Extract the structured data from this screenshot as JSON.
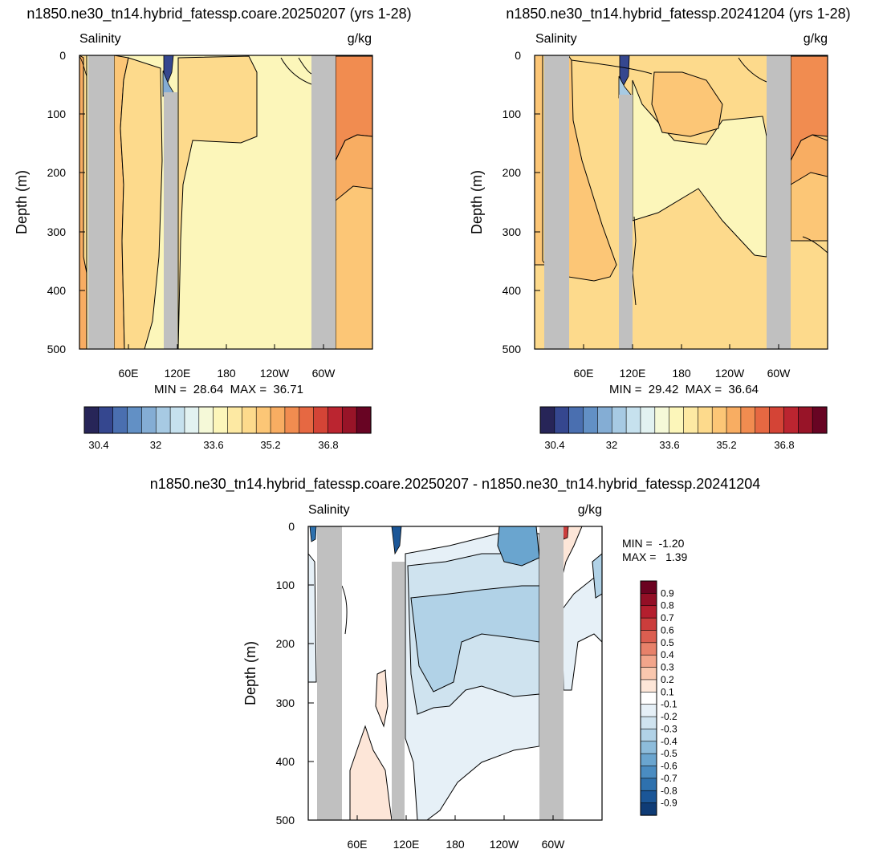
{
  "chart_data": [
    {
      "type": "contour",
      "title": "n1850.ne30_tn14.hybrid_fatessp.coare.20250207 (yrs 1-28)",
      "left_label": "Salinity",
      "right_label": "g/kg",
      "ylabel": "Depth (m)",
      "ylim": [
        0,
        500
      ],
      "y_ticks": [
        "0",
        "100",
        "200",
        "300",
        "400",
        "500"
      ],
      "x_ticks": [
        "60E",
        "120E",
        "180",
        "120W",
        "60W"
      ],
      "minmax_text": "MIN =  28.64  MAX =  36.71",
      "colorbar_labels": [
        "30.4",
        "32",
        "33.6",
        "35.2",
        "36.8"
      ]
    },
    {
      "type": "contour",
      "title": "n1850.ne30_tn14.hybrid_fatessp.20241204 (yrs 1-28)",
      "left_label": "Salinity",
      "right_label": "g/kg",
      "ylabel": "Depth (m)",
      "ylim": [
        0,
        500
      ],
      "y_ticks": [
        "0",
        "100",
        "200",
        "300",
        "400",
        "500"
      ],
      "x_ticks": [
        "60E",
        "120E",
        "180",
        "120W",
        "60W"
      ],
      "minmax_text": "MIN =  29.42  MAX =  36.64",
      "colorbar_labels": [
        "30.4",
        "32",
        "33.6",
        "35.2",
        "36.8"
      ]
    },
    {
      "type": "contour",
      "title": "n1850.ne30_tn14.hybrid_fatessp.coare.20250207 - n1850.ne30_tn14.hybrid_fatessp.20241204",
      "left_label": "Salinity",
      "right_label": "g/kg",
      "ylabel": "Depth (m)",
      "ylim": [
        0,
        500
      ],
      "y_ticks": [
        "0",
        "100",
        "200",
        "300",
        "400",
        "500"
      ],
      "x_ticks": [
        "60E",
        "120E",
        "180",
        "120W",
        "60W"
      ],
      "min_text": "MIN =  -1.20",
      "max_text": "MAX =   1.39",
      "colorbar_labels": [
        "0.9",
        "0.8",
        "0.7",
        "0.6",
        "0.5",
        "0.4",
        "0.3",
        "0.2",
        "0.1",
        "-0.1",
        "-0.2",
        "-0.3",
        "-0.4",
        "-0.5",
        "-0.6",
        "-0.7",
        "-0.8",
        "-0.9"
      ]
    }
  ],
  "colors": {
    "abs_scale": [
      "#272558",
      "#35478f",
      "#4a6fb0",
      "#6290c5",
      "#84add4",
      "#a7cae3",
      "#c6e1ee",
      "#e2f2f1",
      "#f5f9d8",
      "#fcf6ba",
      "#fde9a3",
      "#fdda8c",
      "#fcc676",
      "#f8ad62",
      "#f18c50",
      "#e66842",
      "#d44436",
      "#bb2530",
      "#981428",
      "#680423"
    ],
    "diff_scale": [
      "#6b0221",
      "#930f26",
      "#b41f2e",
      "#cb3d3c",
      "#db5e50",
      "#e7816a",
      "#f2a58b",
      "#f9c7ae",
      "#fde6d8",
      "#ffffff",
      "#e6f0f7",
      "#cfe3ef",
      "#b1d2e7",
      "#8dbcdb",
      "#6aa5cf",
      "#4a8cc1",
      "#2e71ae",
      "#1b5697",
      "#0f3c76"
    ],
    "land": "#c0c0c0"
  }
}
